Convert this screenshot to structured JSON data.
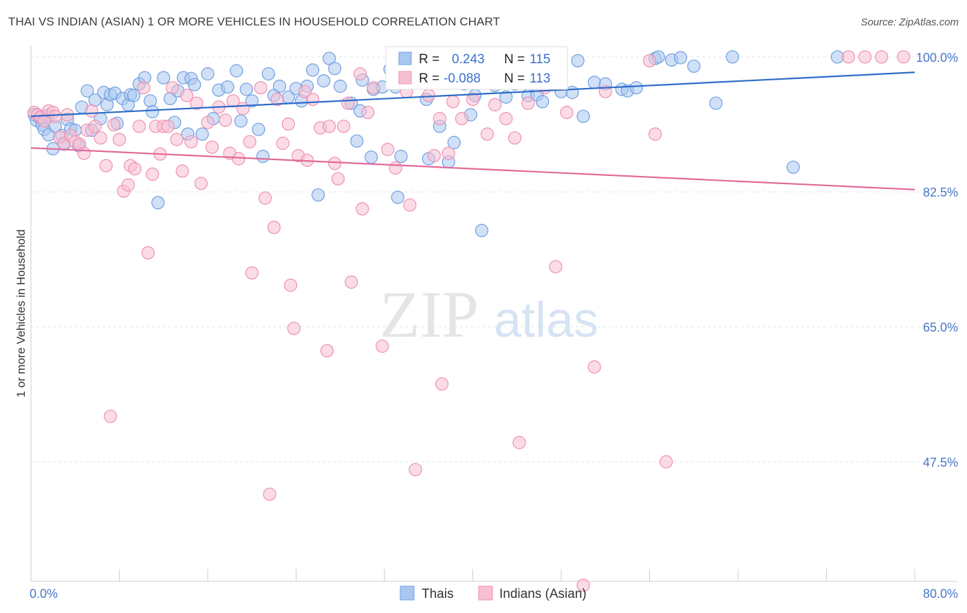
{
  "header": {
    "title": "THAI VS INDIAN (ASIAN) 1 OR MORE VEHICLES IN HOUSEHOLD CORRELATION CHART",
    "source": "Source: ZipAtlas.com"
  },
  "watermark": {
    "part1": "ZIP",
    "part2": "atlas"
  },
  "legend": {
    "r_label": "R =",
    "n_label": "N =",
    "entries": [
      {
        "r": "0.243",
        "n": "115",
        "color": "#6f9fe0"
      },
      {
        "r": "-0.088",
        "n": "113",
        "color": "#f49ab7"
      }
    ]
  },
  "bottom_legend": [
    "Thais",
    "Indians (Asian)"
  ],
  "colors": {
    "thais_fill": "#a9c7f0",
    "thais_stroke": "#6f9fe0",
    "thais_line": "#2d6bc9",
    "indians_fill": "#f7bfd1",
    "indians_stroke": "#ef8fb0",
    "indians_line": "#e2689a",
    "grid": "#dfe3ea",
    "tick_label": "#4a77c9"
  },
  "chart_data": {
    "type": "scatter",
    "title": "THAI VS INDIAN (ASIAN) 1 OR MORE VEHICLES IN HOUSEHOLD CORRELATION CHART",
    "xlabel": "",
    "ylabel": "1 or more Vehicles in Household",
    "xlim": [
      0,
      80
    ],
    "ylim": [
      32,
      101.5
    ],
    "x_tick_labels": [
      "0.0%",
      "80.0%"
    ],
    "y_ticks": [
      47.5,
      65.0,
      82.5,
      100.0
    ],
    "y_tick_labels": [
      "47.5%",
      "65.0%",
      "82.5%",
      "100.0%"
    ],
    "grid": true,
    "legend_position": "top-center",
    "series": [
      {
        "name": "Thais",
        "r": 0.243,
        "n": 115,
        "trend": {
          "x": [
            0,
            80
          ],
          "y": [
            92.3,
            98.0
          ]
        },
        "points": [
          [
            0.3,
            92.5
          ],
          [
            0.5,
            91.8
          ],
          [
            0.8,
            92.1
          ],
          [
            1.0,
            91.2
          ],
          [
            1.2,
            90.6
          ],
          [
            1.5,
            92.4
          ],
          [
            1.6,
            89.9
          ],
          [
            2.0,
            88.1
          ],
          [
            2.2,
            91.0
          ],
          [
            2.8,
            89.8
          ],
          [
            3.0,
            88.7
          ],
          [
            3.3,
            91.9
          ],
          [
            3.6,
            90.7
          ],
          [
            4.0,
            90.5
          ],
          [
            4.3,
            88.5
          ],
          [
            4.6,
            93.5
          ],
          [
            5.1,
            95.6
          ],
          [
            5.5,
            90.5
          ],
          [
            5.8,
            94.4
          ],
          [
            6.3,
            92.0
          ],
          [
            6.6,
            95.4
          ],
          [
            6.9,
            93.8
          ],
          [
            7.2,
            95.1
          ],
          [
            7.6,
            95.3
          ],
          [
            7.8,
            91.4
          ],
          [
            8.3,
            94.6
          ],
          [
            8.8,
            93.8
          ],
          [
            9.0,
            95.1
          ],
          [
            9.3,
            95.0
          ],
          [
            9.8,
            96.5
          ],
          [
            10.3,
            97.3
          ],
          [
            10.8,
            94.3
          ],
          [
            11.0,
            92.9
          ],
          [
            11.5,
            81.1
          ],
          [
            12.0,
            97.3
          ],
          [
            12.6,
            94.6
          ],
          [
            13.0,
            91.5
          ],
          [
            13.3,
            95.6
          ],
          [
            13.8,
            97.3
          ],
          [
            14.2,
            90.0
          ],
          [
            14.5,
            97.2
          ],
          [
            14.8,
            96.4
          ],
          [
            15.5,
            90.0
          ],
          [
            16.0,
            97.8
          ],
          [
            16.5,
            92.0
          ],
          [
            17.0,
            95.7
          ],
          [
            17.8,
            96.1
          ],
          [
            18.6,
            98.2
          ],
          [
            19.0,
            91.7
          ],
          [
            19.5,
            95.8
          ],
          [
            20.0,
            94.3
          ],
          [
            20.6,
            90.6
          ],
          [
            21.0,
            87.1
          ],
          [
            21.5,
            97.8
          ],
          [
            22.0,
            95.0
          ],
          [
            22.5,
            96.2
          ],
          [
            23.3,
            94.8
          ],
          [
            24.0,
            95.9
          ],
          [
            24.5,
            94.3
          ],
          [
            25.0,
            96.2
          ],
          [
            25.5,
            98.3
          ],
          [
            26.0,
            82.1
          ],
          [
            26.5,
            96.9
          ],
          [
            27.0,
            99.8
          ],
          [
            27.5,
            98.5
          ],
          [
            28.0,
            96.2
          ],
          [
            29.0,
            94.0
          ],
          [
            29.5,
            89.1
          ],
          [
            29.8,
            93.0
          ],
          [
            30.0,
            97.0
          ],
          [
            30.8,
            87.0
          ],
          [
            31.0,
            95.8
          ],
          [
            31.8,
            96.1
          ],
          [
            32.5,
            98.4
          ],
          [
            33.0,
            96.1
          ],
          [
            33.2,
            81.8
          ],
          [
            33.5,
            87.1
          ],
          [
            34.2,
            97.2
          ],
          [
            35.0,
            99.0
          ],
          [
            35.8,
            94.5
          ],
          [
            36.0,
            86.8
          ],
          [
            37.0,
            91.0
          ],
          [
            37.8,
            86.4
          ],
          [
            38.3,
            88.9
          ],
          [
            39.2,
            96.5
          ],
          [
            39.8,
            92.5
          ],
          [
            40.2,
            95.0
          ],
          [
            40.8,
            77.5
          ],
          [
            41.2,
            97.0
          ],
          [
            42.0,
            96.3
          ],
          [
            43.0,
            94.8
          ],
          [
            43.8,
            96.5
          ],
          [
            44.5,
            98.2
          ],
          [
            45.0,
            95.0
          ],
          [
            45.8,
            95.1
          ],
          [
            46.3,
            94.2
          ],
          [
            47.2,
            97.0
          ],
          [
            48.0,
            95.5
          ],
          [
            49.0,
            95.4
          ],
          [
            49.5,
            99.5
          ],
          [
            50.0,
            92.3
          ],
          [
            51.0,
            96.7
          ],
          [
            52.0,
            96.5
          ],
          [
            53.5,
            95.8
          ],
          [
            54.0,
            95.6
          ],
          [
            54.8,
            96.0
          ],
          [
            56.5,
            99.8
          ],
          [
            56.8,
            100.0
          ],
          [
            58.0,
            99.6
          ],
          [
            58.8,
            99.9
          ],
          [
            60.0,
            98.8
          ],
          [
            62.0,
            94.0
          ],
          [
            63.5,
            100.0
          ],
          [
            69.0,
            85.7
          ],
          [
            73.0,
            100.0
          ]
        ]
      },
      {
        "name": "Indians (Asian)",
        "r": -0.088,
        "n": 113,
        "trend": {
          "x": [
            0,
            80
          ],
          "y": [
            88.2,
            82.8
          ]
        },
        "points": [
          [
            0.3,
            92.8
          ],
          [
            0.6,
            92.5
          ],
          [
            0.9,
            92.2
          ],
          [
            1.2,
            91.7
          ],
          [
            1.6,
            93.0
          ],
          [
            2.0,
            92.8
          ],
          [
            2.2,
            92.3
          ],
          [
            2.6,
            89.6
          ],
          [
            3.0,
            88.8
          ],
          [
            3.3,
            92.5
          ],
          [
            3.6,
            89.8
          ],
          [
            4.0,
            89.0
          ],
          [
            4.4,
            88.7
          ],
          [
            4.8,
            87.5
          ],
          [
            5.1,
            90.5
          ],
          [
            5.5,
            93.0
          ],
          [
            5.8,
            91.0
          ],
          [
            6.3,
            89.5
          ],
          [
            6.8,
            85.9
          ],
          [
            7.2,
            53.4
          ],
          [
            7.5,
            91.2
          ],
          [
            8.0,
            89.3
          ],
          [
            8.4,
            82.6
          ],
          [
            8.8,
            83.4
          ],
          [
            9.0,
            85.9
          ],
          [
            9.4,
            85.5
          ],
          [
            9.8,
            91.0
          ],
          [
            10.2,
            96.0
          ],
          [
            10.6,
            74.6
          ],
          [
            11.0,
            84.8
          ],
          [
            11.3,
            91.0
          ],
          [
            11.7,
            87.4
          ],
          [
            12.0,
            91.0
          ],
          [
            12.4,
            91.0
          ],
          [
            12.8,
            96.0
          ],
          [
            13.2,
            89.3
          ],
          [
            13.7,
            85.2
          ],
          [
            14.1,
            95.0
          ],
          [
            14.5,
            89.0
          ],
          [
            15.0,
            94.0
          ],
          [
            15.4,
            83.6
          ],
          [
            16.0,
            91.5
          ],
          [
            16.4,
            88.3
          ],
          [
            17.0,
            93.5
          ],
          [
            17.6,
            91.8
          ],
          [
            18.0,
            87.5
          ],
          [
            18.3,
            94.3
          ],
          [
            18.8,
            86.8
          ],
          [
            19.2,
            93.3
          ],
          [
            19.8,
            89.0
          ],
          [
            20.0,
            72.0
          ],
          [
            20.8,
            96.0
          ],
          [
            21.2,
            81.7
          ],
          [
            21.6,
            43.3
          ],
          [
            22.0,
            77.9
          ],
          [
            22.3,
            94.5
          ],
          [
            22.8,
            88.8
          ],
          [
            23.3,
            91.3
          ],
          [
            23.5,
            70.4
          ],
          [
            23.8,
            64.8
          ],
          [
            24.2,
            87.2
          ],
          [
            24.8,
            95.5
          ],
          [
            25.0,
            86.6
          ],
          [
            25.5,
            94.5
          ],
          [
            26.2,
            90.8
          ],
          [
            26.8,
            61.9
          ],
          [
            27.0,
            91.0
          ],
          [
            27.5,
            86.2
          ],
          [
            27.8,
            84.2
          ],
          [
            28.3,
            91.0
          ],
          [
            28.7,
            94.0
          ],
          [
            29.0,
            70.8
          ],
          [
            29.8,
            97.8
          ],
          [
            30.0,
            80.3
          ],
          [
            30.5,
            92.8
          ],
          [
            31.0,
            96.0
          ],
          [
            31.8,
            62.5
          ],
          [
            32.3,
            88.0
          ],
          [
            32.8,
            97.5
          ],
          [
            33.0,
            85.6
          ],
          [
            33.2,
            97.8
          ],
          [
            34.0,
            95.5
          ],
          [
            34.3,
            80.8
          ],
          [
            34.8,
            46.5
          ],
          [
            35.2,
            99.5
          ],
          [
            36.0,
            95.0
          ],
          [
            36.5,
            87.2
          ],
          [
            37.0,
            92.0
          ],
          [
            37.2,
            57.6
          ],
          [
            37.8,
            87.5
          ],
          [
            38.2,
            94.2
          ],
          [
            39.0,
            92.0
          ],
          [
            40.0,
            94.5
          ],
          [
            41.3,
            90.0
          ],
          [
            42.0,
            93.8
          ],
          [
            42.5,
            98.5
          ],
          [
            43.0,
            92.0
          ],
          [
            43.8,
            89.5
          ],
          [
            44.2,
            50.0
          ],
          [
            45.0,
            94.0
          ],
          [
            46.5,
            96.0
          ],
          [
            47.5,
            72.8
          ],
          [
            48.5,
            92.8
          ],
          [
            50.0,
            31.5
          ],
          [
            51.0,
            59.8
          ],
          [
            52.0,
            95.5
          ],
          [
            56.0,
            99.5
          ],
          [
            56.5,
            90.0
          ],
          [
            57.5,
            47.5
          ],
          [
            74.0,
            100.0
          ],
          [
            75.5,
            100.0
          ],
          [
            77.0,
            100.0
          ],
          [
            79.0,
            100.0
          ]
        ]
      }
    ]
  }
}
